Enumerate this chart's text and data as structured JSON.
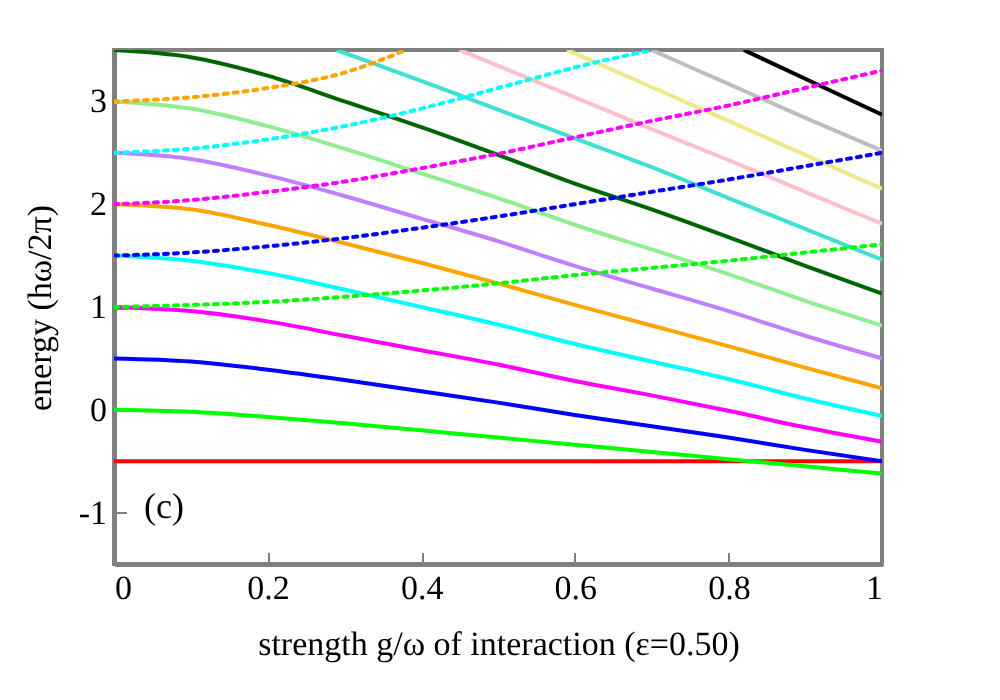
{
  "chart_data": {
    "type": "line",
    "xlabel": "strength g/ω of interaction  (ε=0.50)",
    "ylabel": "energy  (hω/2π)",
    "annotations": [
      "(c)"
    ],
    "x": [
      0,
      0.1,
      0.2,
      0.3,
      0.4,
      0.5,
      0.6,
      0.7,
      0.8,
      0.9,
      1
    ],
    "xlim": [
      0,
      1
    ],
    "xticks": [
      0,
      0.2,
      0.4,
      0.6,
      0.8,
      1
    ],
    "ylim": [
      -1.5,
      3.5
    ],
    "yticks": [
      -1,
      0,
      1,
      2,
      3
    ],
    "grid": false,
    "series": [
      {
        "color": "#ff0000",
        "line_style": "solid",
        "values": [
          -0.5,
          -0.5,
          -0.5,
          -0.5,
          -0.5,
          -0.5,
          -0.5,
          -0.5,
          -0.5,
          -0.5,
          -0.5
        ]
      },
      {
        "color": "#00ff00",
        "line_style": "solid",
        "values": [
          0,
          -0.02,
          -0.07,
          -0.13,
          -0.2,
          -0.27,
          -0.34,
          -0.41,
          -0.48,
          -0.55,
          -0.62
        ]
      },
      {
        "color": "#0000ff",
        "line_style": "solid",
        "values": [
          0.5,
          0.47,
          0.39,
          0.29,
          0.18,
          0.07,
          -0.05,
          -0.16,
          -0.27,
          -0.39,
          -0.5
        ]
      },
      {
        "color": "#ff00ff",
        "line_style": "solid",
        "values": [
          1,
          0.96,
          0.86,
          0.72,
          0.58,
          0.44,
          0.28,
          0.14,
          -0.01,
          -0.17,
          -0.31
        ]
      },
      {
        "color": "#00ffff",
        "line_style": "solid",
        "values": [
          1.5,
          1.45,
          1.33,
          1.17,
          1,
          0.83,
          0.64,
          0.47,
          0.3,
          0.11,
          -0.06
        ]
      },
      {
        "color": "#ffa500",
        "line_style": "solid",
        "values": [
          2,
          1.95,
          1.8,
          1.62,
          1.43,
          1.23,
          1.02,
          0.82,
          0.62,
          0.41,
          0.21
        ]
      },
      {
        "color": "#c080ff",
        "line_style": "solid",
        "values": [
          2.5,
          2.44,
          2.28,
          2.08,
          1.86,
          1.64,
          1.4,
          1.18,
          0.96,
          0.72,
          0.5
        ]
      },
      {
        "color": "#90ee90",
        "line_style": "solid",
        "values": [
          3,
          2.93,
          2.76,
          2.54,
          2.3,
          2.06,
          1.8,
          1.56,
          1.32,
          1.06,
          0.82
        ]
      },
      {
        "color": "#006400",
        "line_style": "solid",
        "values": [
          3.5,
          3.43,
          3.25,
          3.0,
          2.75,
          2.48,
          2.2,
          1.95,
          1.68,
          1.4,
          1.13
        ]
      },
      {
        "color": "#40e0d0",
        "line_style": "solid",
        "x": [
          0.29,
          0.4,
          0.5,
          0.6,
          0.7,
          0.8,
          0.9,
          1
        ],
        "values": [
          3.5,
          3.2,
          2.92,
          2.64,
          2.36,
          2.06,
          1.76,
          1.46
        ]
      },
      {
        "color": "#ffc0cb",
        "line_style": "solid",
        "x": [
          0.45,
          0.6,
          0.7,
          0.8,
          0.9,
          1
        ],
        "values": [
          3.5,
          3.04,
          2.73,
          2.43,
          2.12,
          1.81
        ]
      },
      {
        "color": "#f0e68c",
        "line_style": "solid",
        "x": [
          0.59,
          0.7,
          0.8,
          0.9,
          1
        ],
        "values": [
          3.5,
          3.14,
          2.81,
          2.48,
          2.15
        ]
      },
      {
        "color": "#bebebe",
        "line_style": "solid",
        "x": [
          0.7,
          0.8,
          0.9,
          1
        ],
        "values": [
          3.5,
          3.17,
          2.84,
          2.52
        ]
      },
      {
        "color": "#000000",
        "line_style": "solid",
        "x": [
          0.82,
          0.9,
          1
        ],
        "values": [
          3.5,
          3.22,
          2.87
        ]
      },
      {
        "color": "#00ff00",
        "line_style": "dotted",
        "values": [
          1,
          1.02,
          1.05,
          1.1,
          1.16,
          1.23,
          1.31,
          1.38,
          1.45,
          1.53,
          1.61
        ]
      },
      {
        "color": "#0000ff",
        "line_style": "dotted",
        "values": [
          1.5,
          1.53,
          1.59,
          1.67,
          1.77,
          1.88,
          2,
          2.12,
          2.24,
          2.37,
          2.5
        ]
      },
      {
        "color": "#ff00ff",
        "line_style": "dotted",
        "values": [
          2,
          2.04,
          2.12,
          2.22,
          2.35,
          2.49,
          2.65,
          2.81,
          2.96,
          3.13,
          3.3
        ]
      },
      {
        "color": "#00ffff",
        "line_style": "dotted",
        "x": [
          0,
          0.1,
          0.2,
          0.3,
          0.4,
          0.5,
          0.6,
          0.7
        ],
        "values": [
          2.5,
          2.54,
          2.63,
          2.76,
          2.93,
          3.13,
          3.33,
          3.5
        ]
      },
      {
        "color": "#ffa500",
        "line_style": "dotted",
        "x": [
          0,
          0.1,
          0.2,
          0.3,
          0.38
        ],
        "values": [
          3,
          3.04,
          3.13,
          3.28,
          3.5
        ]
      }
    ]
  }
}
